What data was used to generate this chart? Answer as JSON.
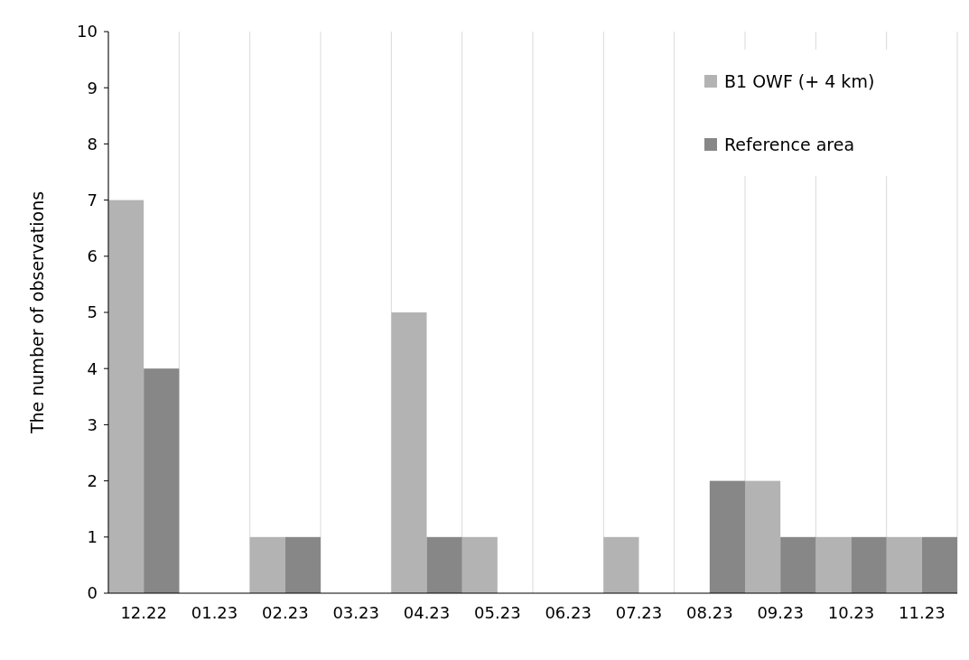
{
  "chart_data": {
    "type": "bar",
    "ylabel": "The number of observations",
    "categories": [
      "12.22",
      "01.23",
      "02.23",
      "03.23",
      "04.23",
      "05.23",
      "06.23",
      "07.23",
      "08.23",
      "09.23",
      "10.23",
      "11.23"
    ],
    "series": [
      {
        "name": "B1 OWF (+ 4 km)",
        "color": "#b3b3b3",
        "values": [
          7,
          0,
          1,
          0,
          5,
          1,
          0,
          1,
          0,
          2,
          1,
          1
        ]
      },
      {
        "name": "Reference area",
        "color": "#878787",
        "values": [
          4,
          0,
          1,
          0,
          1,
          0,
          0,
          0,
          2,
          1,
          1,
          1
        ]
      }
    ],
    "ylim": [
      0,
      10
    ],
    "yticks": [
      0,
      1,
      2,
      3,
      4,
      5,
      6,
      7,
      8,
      9,
      10
    ],
    "grid": "x",
    "legend": "top right"
  }
}
